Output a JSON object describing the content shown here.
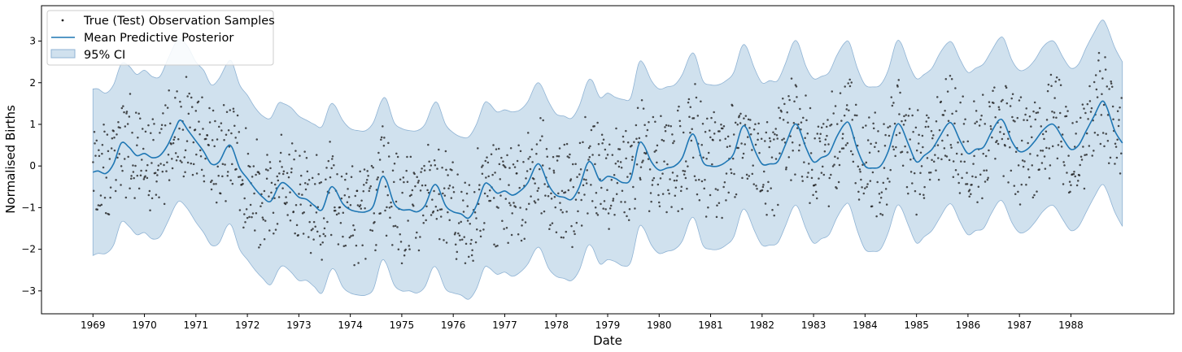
{
  "chart_data": {
    "type": "line",
    "xlabel": "Date",
    "ylabel": "Normalised Births",
    "x_range": [
      1968.0,
      1990.0
    ],
    "ylim": [
      -3.55,
      3.85
    ],
    "x_ticks": [
      "1969",
      "1970",
      "1971",
      "1972",
      "1973",
      "1974",
      "1975",
      "1976",
      "1977",
      "1978",
      "1979",
      "1980",
      "1981",
      "1982",
      "1983",
      "1984",
      "1985",
      "1986",
      "1987",
      "1988"
    ],
    "y_ticks": [
      -3,
      -2,
      -1,
      0,
      1,
      2,
      3
    ],
    "grid": false,
    "legend_position": "top-left",
    "legend": [
      "True (Test) Observation Samples",
      "Mean Predictive Posterior",
      "95% CI"
    ],
    "colors": {
      "mean": "#1f77b4",
      "ci_fill": "#a9c8e0",
      "ci_edge": "#8fb3d4",
      "points": "#222222"
    },
    "series": [
      {
        "name": "Mean Predictive Posterior",
        "type": "line",
        "x": [
          1969.0,
          1969.1,
          1969.25,
          1969.4,
          1969.55,
          1969.7,
          1969.85,
          1970.0,
          1970.15,
          1970.3,
          1970.45,
          1970.6,
          1970.7,
          1970.85,
          1971.0,
          1971.15,
          1971.3,
          1971.45,
          1971.6,
          1971.7,
          1971.85,
          1972.0,
          1972.15,
          1972.3,
          1972.45,
          1972.6,
          1972.7,
          1972.85,
          1973.0,
          1973.15,
          1973.3,
          1973.45,
          1973.6,
          1973.7,
          1973.85,
          1974.0,
          1974.15,
          1974.3,
          1974.45,
          1974.6,
          1974.7,
          1974.85,
          1975.0,
          1975.15,
          1975.3,
          1975.45,
          1975.6,
          1975.7,
          1975.85,
          1976.0,
          1976.15,
          1976.3,
          1976.45,
          1976.6,
          1976.7,
          1976.85,
          1977.0,
          1977.15,
          1977.3,
          1977.45,
          1977.6,
          1977.7,
          1977.85,
          1978.0,
          1978.15,
          1978.3,
          1978.45,
          1978.6,
          1978.7,
          1978.85,
          1979.0,
          1979.15,
          1979.3,
          1979.45,
          1979.6,
          1979.7,
          1979.85,
          1980.0,
          1980.15,
          1980.3,
          1980.45,
          1980.6,
          1980.7,
          1980.85,
          1981.0,
          1981.15,
          1981.3,
          1981.45,
          1981.6,
          1981.7,
          1981.85,
          1982.0,
          1982.15,
          1982.3,
          1982.45,
          1982.6,
          1982.7,
          1982.85,
          1983.0,
          1983.15,
          1983.3,
          1983.45,
          1983.6,
          1983.7,
          1983.85,
          1984.0,
          1984.15,
          1984.3,
          1984.45,
          1984.6,
          1984.7,
          1984.85,
          1985.0,
          1985.15,
          1985.3,
          1985.45,
          1985.6,
          1985.7,
          1985.85,
          1986.0,
          1986.15,
          1986.3,
          1986.45,
          1986.6,
          1986.7,
          1986.85,
          1987.0,
          1987.15,
          1987.3,
          1987.45,
          1987.6,
          1987.7,
          1987.85,
          1988.0,
          1988.15,
          1988.3,
          1988.45,
          1988.6,
          1988.7,
          1988.85,
          1989.0
        ],
        "y": [
          -0.15,
          -0.12,
          -0.18,
          0.05,
          0.55,
          0.45,
          0.25,
          0.3,
          0.2,
          0.25,
          0.5,
          0.9,
          1.1,
          0.85,
          0.6,
          0.35,
          0.05,
          0.1,
          0.45,
          0.45,
          -0.05,
          -0.3,
          -0.55,
          -0.75,
          -0.85,
          -0.5,
          -0.4,
          -0.55,
          -0.75,
          -0.8,
          -0.95,
          -1.05,
          -0.55,
          -0.55,
          -0.9,
          -1.05,
          -1.1,
          -1.1,
          -0.95,
          -0.3,
          -0.35,
          -0.9,
          -1.05,
          -1.05,
          -1.1,
          -0.95,
          -0.5,
          -0.5,
          -0.95,
          -1.1,
          -1.15,
          -1.25,
          -0.95,
          -0.45,
          -0.45,
          -0.65,
          -0.6,
          -0.7,
          -0.6,
          -0.4,
          0.0,
          0.0,
          -0.45,
          -0.7,
          -0.75,
          -0.8,
          -0.5,
          0.05,
          0.05,
          -0.35,
          -0.25,
          -0.3,
          -0.4,
          -0.3,
          0.5,
          0.5,
          0.1,
          -0.1,
          -0.05,
          0.0,
          0.2,
          0.7,
          0.7,
          0.1,
          0.0,
          0.0,
          0.1,
          0.3,
          0.9,
          0.9,
          0.4,
          0.05,
          0.05,
          0.1,
          0.5,
          0.95,
          0.95,
          0.45,
          0.1,
          0.2,
          0.3,
          0.7,
          1.0,
          1.0,
          0.4,
          0.0,
          -0.05,
          0.0,
          0.35,
          0.95,
          0.95,
          0.5,
          0.1,
          0.25,
          0.4,
          0.7,
          1.0,
          1.0,
          0.6,
          0.3,
          0.4,
          0.45,
          0.8,
          1.1,
          1.05,
          0.6,
          0.35,
          0.4,
          0.6,
          0.85,
          1.0,
          0.95,
          0.65,
          0.4,
          0.5,
          0.85,
          1.2,
          1.55,
          1.4,
          0.85,
          0.55
        ]
      },
      {
        "name": "95% CI",
        "type": "area",
        "x": [
          1969.0,
          1969.1,
          1969.25,
          1969.4,
          1969.55,
          1969.7,
          1969.85,
          1970.0,
          1970.15,
          1970.3,
          1970.45,
          1970.6,
          1970.7,
          1970.85,
          1971.0,
          1971.15,
          1971.3,
          1971.45,
          1971.6,
          1971.7,
          1971.85,
          1972.0,
          1972.15,
          1972.3,
          1972.45,
          1972.6,
          1972.7,
          1972.85,
          1973.0,
          1973.15,
          1973.3,
          1973.45,
          1973.6,
          1973.7,
          1973.85,
          1974.0,
          1974.15,
          1974.3,
          1974.45,
          1974.6,
          1974.7,
          1974.85,
          1975.0,
          1975.15,
          1975.3,
          1975.45,
          1975.6,
          1975.7,
          1975.85,
          1976.0,
          1976.15,
          1976.3,
          1976.45,
          1976.6,
          1976.7,
          1976.85,
          1977.0,
          1977.15,
          1977.3,
          1977.45,
          1977.6,
          1977.7,
          1977.85,
          1978.0,
          1978.15,
          1978.3,
          1978.45,
          1978.6,
          1978.7,
          1978.85,
          1979.0,
          1979.15,
          1979.3,
          1979.45,
          1979.6,
          1979.7,
          1979.85,
          1980.0,
          1980.15,
          1980.3,
          1980.45,
          1980.6,
          1980.7,
          1980.85,
          1981.0,
          1981.15,
          1981.3,
          1981.45,
          1981.6,
          1981.7,
          1981.85,
          1982.0,
          1982.15,
          1982.3,
          1982.45,
          1982.6,
          1982.7,
          1982.85,
          1983.0,
          1983.15,
          1983.3,
          1983.45,
          1983.6,
          1983.7,
          1983.85,
          1984.0,
          1984.15,
          1984.3,
          1984.45,
          1984.6,
          1984.7,
          1984.85,
          1985.0,
          1985.15,
          1985.3,
          1985.45,
          1985.6,
          1985.7,
          1985.85,
          1986.0,
          1986.15,
          1986.3,
          1986.45,
          1986.6,
          1986.7,
          1986.85,
          1987.0,
          1987.15,
          1987.3,
          1987.45,
          1987.6,
          1987.7,
          1987.85,
          1988.0,
          1988.15,
          1988.3,
          1988.45,
          1988.6,
          1988.7,
          1988.85,
          1989.0
        ],
        "upper": [
          1.85,
          1.85,
          1.75,
          1.95,
          2.45,
          2.4,
          2.2,
          2.3,
          2.15,
          2.15,
          2.55,
          2.95,
          3.05,
          2.85,
          2.5,
          2.3,
          1.95,
          2.1,
          2.45,
          2.5,
          1.95,
          1.7,
          1.4,
          1.2,
          1.15,
          1.5,
          1.5,
          1.4,
          1.2,
          1.1,
          1.0,
          0.95,
          1.45,
          1.45,
          1.1,
          0.9,
          0.85,
          0.85,
          1.05,
          1.55,
          1.6,
          1.05,
          0.9,
          0.85,
          0.85,
          1.0,
          1.45,
          1.5,
          1.0,
          0.8,
          0.7,
          0.7,
          1.0,
          1.5,
          1.5,
          1.3,
          1.35,
          1.3,
          1.35,
          1.55,
          1.95,
          1.95,
          1.55,
          1.25,
          1.2,
          1.15,
          1.45,
          2.0,
          2.05,
          1.65,
          1.75,
          1.65,
          1.6,
          1.65,
          2.45,
          2.45,
          2.05,
          1.85,
          1.9,
          1.95,
          2.2,
          2.65,
          2.65,
          2.05,
          1.95,
          1.95,
          2.05,
          2.25,
          2.85,
          2.85,
          2.35,
          2.0,
          2.05,
          2.05,
          2.45,
          2.95,
          2.95,
          2.4,
          2.1,
          2.15,
          2.25,
          2.65,
          2.95,
          2.95,
          2.35,
          1.95,
          1.9,
          1.95,
          2.3,
          2.95,
          2.95,
          2.45,
          2.1,
          2.2,
          2.35,
          2.7,
          2.95,
          2.95,
          2.55,
          2.25,
          2.35,
          2.45,
          2.75,
          3.05,
          3.05,
          2.55,
          2.3,
          2.35,
          2.55,
          2.85,
          3.0,
          2.95,
          2.6,
          2.35,
          2.45,
          2.85,
          3.2,
          3.5,
          3.35,
          2.85,
          2.5
        ],
        "lower": [
          -2.15,
          -2.1,
          -2.1,
          -1.9,
          -1.35,
          -1.45,
          -1.65,
          -1.6,
          -1.75,
          -1.7,
          -1.35,
          -0.95,
          -0.85,
          -1.05,
          -1.35,
          -1.6,
          -1.9,
          -1.85,
          -1.45,
          -1.45,
          -2.0,
          -2.25,
          -2.5,
          -2.7,
          -2.85,
          -2.5,
          -2.4,
          -2.55,
          -2.75,
          -2.75,
          -2.9,
          -3.05,
          -2.55,
          -2.5,
          -2.9,
          -3.05,
          -3.1,
          -3.1,
          -2.95,
          -2.3,
          -2.35,
          -2.85,
          -3.0,
          -3.0,
          -3.05,
          -2.9,
          -2.45,
          -2.5,
          -2.95,
          -3.05,
          -3.1,
          -3.2,
          -2.95,
          -2.45,
          -2.45,
          -2.6,
          -2.55,
          -2.65,
          -2.55,
          -2.35,
          -2.0,
          -2.0,
          -2.45,
          -2.65,
          -2.7,
          -2.75,
          -2.5,
          -1.95,
          -1.95,
          -2.35,
          -2.25,
          -2.3,
          -2.4,
          -2.3,
          -1.5,
          -1.5,
          -1.9,
          -2.1,
          -2.05,
          -2.0,
          -1.8,
          -1.3,
          -1.3,
          -1.9,
          -2.0,
          -2.0,
          -1.9,
          -1.7,
          -1.1,
          -1.1,
          -1.55,
          -1.9,
          -1.9,
          -1.85,
          -1.45,
          -1.0,
          -1.0,
          -1.5,
          -1.85,
          -1.75,
          -1.65,
          -1.25,
          -0.95,
          -0.95,
          -1.55,
          -2.0,
          -2.05,
          -2.0,
          -1.6,
          -1.0,
          -1.0,
          -1.45,
          -1.85,
          -1.7,
          -1.55,
          -1.25,
          -0.95,
          -0.95,
          -1.35,
          -1.65,
          -1.55,
          -1.5,
          -1.15,
          -0.85,
          -0.9,
          -1.35,
          -1.6,
          -1.55,
          -1.35,
          -1.1,
          -0.95,
          -1.0,
          -1.3,
          -1.55,
          -1.45,
          -1.1,
          -0.75,
          -0.45,
          -0.6,
          -1.1,
          -1.45
        ]
      },
      {
        "name": "True (Test) Observation Samples",
        "type": "scatter",
        "generated_from_mean_offsets": [
          0.0,
          0.75,
          -0.75,
          1.05,
          -1.05,
          0.35,
          -0.35,
          0.55,
          -0.55
        ]
      }
    ]
  }
}
